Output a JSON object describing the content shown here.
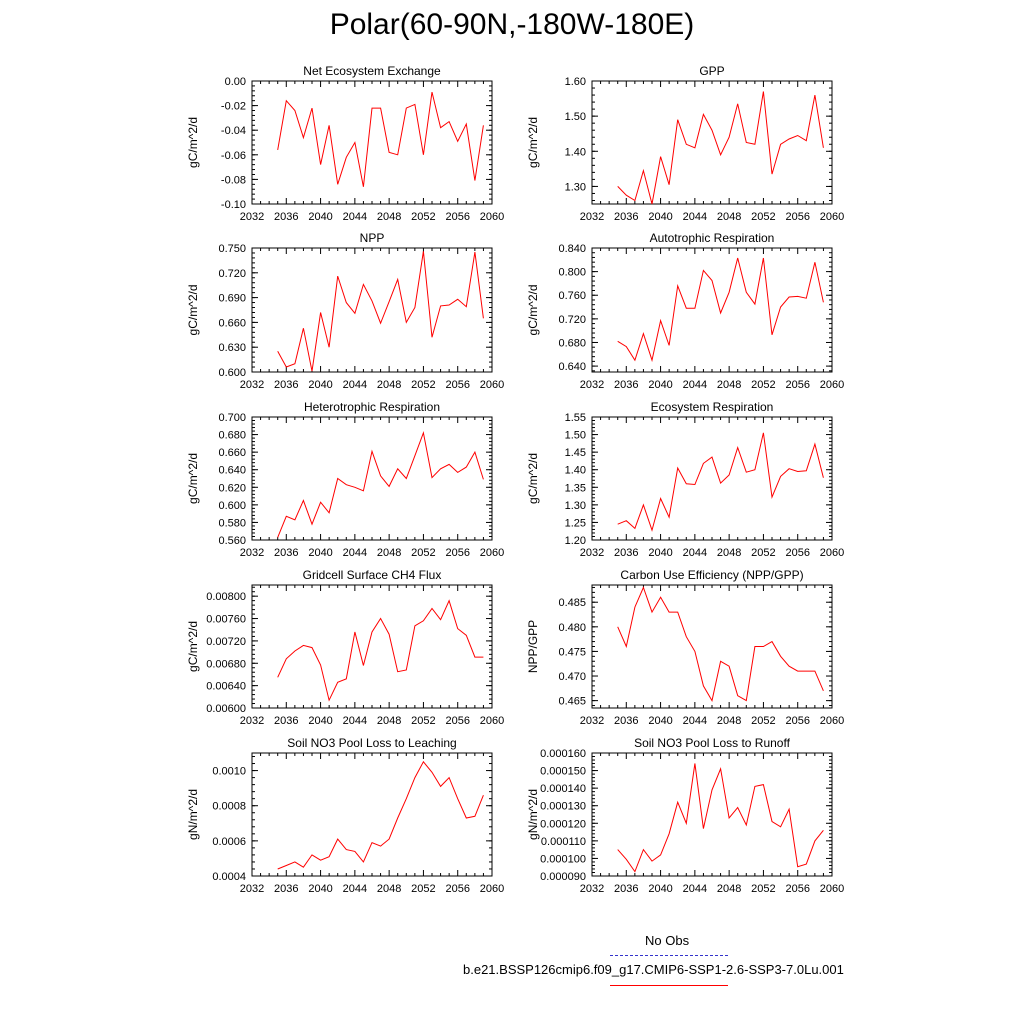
{
  "title": "Polar(60-90N,-180W-180E)",
  "legend": [
    {
      "label": "No Obs",
      "color": "#3333cc",
      "style": "dashed"
    },
    {
      "label": "b.e21.BSSP126cmip6.f09_g17.CMIP6-SSP1-2.6-SSP3-7.0Lu.001",
      "color": "#ff0000",
      "style": "solid"
    }
  ],
  "chart_data": [
    {
      "type": "line",
      "title": "Net Ecosystem Exchange",
      "ylabel": "gC/m^2/d",
      "xlim": [
        2032,
        2060
      ],
      "ylim": [
        -0.1,
        0.0
      ],
      "xticks": [
        "2032",
        "2036",
        "2040",
        "2044",
        "2048",
        "2052",
        "2056",
        "2060"
      ],
      "yticks": [
        "-0.10",
        "-0.08",
        "-0.06",
        "-0.04",
        "-0.02",
        "0.00"
      ],
      "x": [
        2035,
        2036,
        2037,
        2038,
        2039,
        2040,
        2041,
        2042,
        2043,
        2044,
        2045,
        2046,
        2047,
        2048,
        2049,
        2050,
        2051,
        2052,
        2053,
        2054,
        2055,
        2056,
        2057,
        2058,
        2059
      ],
      "series": [
        {
          "color": "#ff0000",
          "values": [
            -0.056,
            -0.016,
            -0.024,
            -0.046,
            -0.022,
            -0.068,
            -0.036,
            -0.084,
            -0.062,
            -0.05,
            -0.086,
            -0.022,
            -0.022,
            -0.058,
            -0.06,
            -0.022,
            -0.019,
            -0.06,
            -0.009,
            -0.038,
            -0.033,
            -0.049,
            -0.035,
            -0.081,
            -0.036
          ]
        }
      ]
    },
    {
      "type": "line",
      "title": "GPP",
      "ylabel": "gC/m^2/d",
      "xlim": [
        2032,
        2060
      ],
      "ylim": [
        1.25,
        1.6
      ],
      "xticks": [
        "2032",
        "2036",
        "2040",
        "2044",
        "2048",
        "2052",
        "2056",
        "2060"
      ],
      "yticks": [
        "1.30",
        "1.40",
        "1.50",
        "1.60"
      ],
      "x": [
        2035,
        2036,
        2037,
        2038,
        2039,
        2040,
        2041,
        2042,
        2043,
        2044,
        2045,
        2046,
        2047,
        2048,
        2049,
        2050,
        2051,
        2052,
        2053,
        2054,
        2055,
        2056,
        2057,
        2058,
        2059
      ],
      "series": [
        {
          "color": "#ff0000",
          "values": [
            1.3,
            1.275,
            1.26,
            1.345,
            1.25,
            1.385,
            1.305,
            1.49,
            1.42,
            1.41,
            1.505,
            1.46,
            1.39,
            1.44,
            1.535,
            1.425,
            1.42,
            1.57,
            1.335,
            1.42,
            1.435,
            1.445,
            1.43,
            1.56,
            1.41
          ]
        }
      ]
    },
    {
      "type": "line",
      "title": "NPP",
      "ylabel": "gC/m^2/d",
      "xlim": [
        2032,
        2060
      ],
      "ylim": [
        0.6,
        0.75
      ],
      "xticks": [
        "2032",
        "2036",
        "2040",
        "2044",
        "2048",
        "2052",
        "2056",
        "2060"
      ],
      "yticks": [
        "0.600",
        "0.630",
        "0.660",
        "0.690",
        "0.720",
        "0.750"
      ],
      "x": [
        2035,
        2036,
        2037,
        2038,
        2039,
        2040,
        2041,
        2042,
        2043,
        2044,
        2045,
        2046,
        2047,
        2048,
        2049,
        2050,
        2051,
        2052,
        2053,
        2054,
        2055,
        2056,
        2057,
        2058,
        2059
      ],
      "series": [
        {
          "color": "#ff0000",
          "values": [
            0.625,
            0.606,
            0.61,
            0.653,
            0.601,
            0.672,
            0.63,
            0.716,
            0.684,
            0.671,
            0.706,
            0.686,
            0.659,
            0.685,
            0.712,
            0.66,
            0.678,
            0.746,
            0.642,
            0.68,
            0.681,
            0.688,
            0.679,
            0.745,
            0.665
          ]
        }
      ]
    },
    {
      "type": "line",
      "title": "Autotrophic Respiration",
      "ylabel": "gC/m^2/d",
      "xlim": [
        2032,
        2060
      ],
      "ylim": [
        0.63,
        0.84
      ],
      "xticks": [
        "2032",
        "2036",
        "2040",
        "2044",
        "2048",
        "2052",
        "2056",
        "2060"
      ],
      "yticks": [
        "0.640",
        "0.680",
        "0.720",
        "0.760",
        "0.800",
        "0.840"
      ],
      "x": [
        2035,
        2036,
        2037,
        2038,
        2039,
        2040,
        2041,
        2042,
        2043,
        2044,
        2045,
        2046,
        2047,
        2048,
        2049,
        2050,
        2051,
        2052,
        2053,
        2054,
        2055,
        2056,
        2057,
        2058,
        2059
      ],
      "series": [
        {
          "color": "#ff0000",
          "values": [
            0.682,
            0.673,
            0.65,
            0.695,
            0.65,
            0.717,
            0.675,
            0.776,
            0.738,
            0.738,
            0.802,
            0.785,
            0.73,
            0.765,
            0.823,
            0.765,
            0.745,
            0.823,
            0.693,
            0.74,
            0.757,
            0.758,
            0.755,
            0.816,
            0.748
          ]
        }
      ]
    },
    {
      "type": "line",
      "title": "Heterotrophic Respiration",
      "ylabel": "gC/m^2/d",
      "xlim": [
        2032,
        2060
      ],
      "ylim": [
        0.56,
        0.7
      ],
      "xticks": [
        "2032",
        "2036",
        "2040",
        "2044",
        "2048",
        "2052",
        "2056",
        "2060"
      ],
      "yticks": [
        "0.560",
        "0.580",
        "0.600",
        "0.620",
        "0.640",
        "0.660",
        "0.680",
        "0.700"
      ],
      "x": [
        2035,
        2036,
        2037,
        2038,
        2039,
        2040,
        2041,
        2042,
        2043,
        2044,
        2045,
        2046,
        2047,
        2048,
        2049,
        2050,
        2051,
        2052,
        2053,
        2054,
        2055,
        2056,
        2057,
        2058,
        2059
      ],
      "series": [
        {
          "color": "#ff0000",
          "values": [
            0.563,
            0.587,
            0.583,
            0.605,
            0.578,
            0.603,
            0.591,
            0.63,
            0.623,
            0.62,
            0.616,
            0.661,
            0.633,
            0.621,
            0.641,
            0.63,
            0.656,
            0.682,
            0.631,
            0.641,
            0.646,
            0.637,
            0.643,
            0.66,
            0.629
          ]
        }
      ]
    },
    {
      "type": "line",
      "title": "Ecosystem Respiration",
      "ylabel": "gC/m^2/d",
      "xlim": [
        2032,
        2060
      ],
      "ylim": [
        1.2,
        1.55
      ],
      "xticks": [
        "2032",
        "2036",
        "2040",
        "2044",
        "2048",
        "2052",
        "2056",
        "2060"
      ],
      "yticks": [
        "1.20",
        "1.25",
        "1.30",
        "1.35",
        "1.40",
        "1.45",
        "1.50",
        "1.55"
      ],
      "x": [
        2035,
        2036,
        2037,
        2038,
        2039,
        2040,
        2041,
        2042,
        2043,
        2044,
        2045,
        2046,
        2047,
        2048,
        2049,
        2050,
        2051,
        2052,
        2053,
        2054,
        2055,
        2056,
        2057,
        2058,
        2059
      ],
      "series": [
        {
          "color": "#ff0000",
          "values": [
            1.245,
            1.255,
            1.233,
            1.3,
            1.228,
            1.318,
            1.265,
            1.405,
            1.36,
            1.358,
            1.418,
            1.436,
            1.362,
            1.385,
            1.463,
            1.393,
            1.4,
            1.505,
            1.322,
            1.381,
            1.403,
            1.395,
            1.397,
            1.473,
            1.377
          ]
        }
      ]
    },
    {
      "type": "line",
      "title": "Gridcell Surface CH4 Flux",
      "ylabel": "gC/m^2/d",
      "xlim": [
        2032,
        2060
      ],
      "ylim": [
        0.006,
        0.0082
      ],
      "xticks": [
        "2032",
        "2036",
        "2040",
        "2044",
        "2048",
        "2052",
        "2056",
        "2060"
      ],
      "yticks": [
        "0.00600",
        "0.00640",
        "0.00680",
        "0.00720",
        "0.00760",
        "0.00800"
      ],
      "x": [
        2035,
        2036,
        2037,
        2038,
        2039,
        2040,
        2041,
        2042,
        2043,
        2044,
        2045,
        2046,
        2047,
        2048,
        2049,
        2050,
        2051,
        2052,
        2053,
        2054,
        2055,
        2056,
        2057,
        2058,
        2059
      ],
      "series": [
        {
          "color": "#ff0000",
          "values": [
            0.00655,
            0.00688,
            0.00702,
            0.00712,
            0.00708,
            0.00677,
            0.00614,
            0.00646,
            0.00652,
            0.00736,
            0.00676,
            0.00736,
            0.0076,
            0.00732,
            0.00665,
            0.00668,
            0.00747,
            0.00756,
            0.00778,
            0.00758,
            0.00792,
            0.00742,
            0.0073,
            0.00691,
            0.00691
          ]
        }
      ]
    },
    {
      "type": "line",
      "title": "Carbon Use Efficiency (NPP/GPP)",
      "ylabel": "NPP/GPP",
      "xlim": [
        2032,
        2060
      ],
      "ylim": [
        0.4635,
        0.4885
      ],
      "xticks": [
        "2032",
        "2036",
        "2040",
        "2044",
        "2048",
        "2052",
        "2056",
        "2060"
      ],
      "yticks": [
        "0.465",
        "0.470",
        "0.475",
        "0.480",
        "0.485"
      ],
      "x": [
        2035,
        2036,
        2037,
        2038,
        2039,
        2040,
        2041,
        2042,
        2043,
        2044,
        2045,
        2046,
        2047,
        2048,
        2049,
        2050,
        2051,
        2052,
        2053,
        2054,
        2055,
        2056,
        2057,
        2058,
        2059
      ],
      "series": [
        {
          "color": "#ff0000",
          "values": [
            0.48,
            0.476,
            0.484,
            0.488,
            0.483,
            0.486,
            0.483,
            0.483,
            0.478,
            0.475,
            0.468,
            0.465,
            0.473,
            0.472,
            0.466,
            0.465,
            0.476,
            0.476,
            0.477,
            0.474,
            0.472,
            0.471,
            0.471,
            0.471,
            0.467
          ]
        }
      ]
    },
    {
      "type": "line",
      "title": "Soil NO3 Pool Loss to Leaching",
      "ylabel": "gN/m^2/d",
      "xlim": [
        2032,
        2060
      ],
      "ylim": [
        0.0004,
        0.0011
      ],
      "xticks": [
        "2032",
        "2036",
        "2040",
        "2044",
        "2048",
        "2052",
        "2056",
        "2060"
      ],
      "yticks": [
        "0.0004",
        "0.0006",
        "0.0008",
        "0.0010"
      ],
      "x": [
        2035,
        2036,
        2037,
        2038,
        2039,
        2040,
        2041,
        2042,
        2043,
        2044,
        2045,
        2046,
        2047,
        2048,
        2049,
        2050,
        2051,
        2052,
        2053,
        2054,
        2055,
        2056,
        2057,
        2058,
        2059
      ],
      "series": [
        {
          "color": "#ff0000",
          "values": [
            0.00044,
            0.00046,
            0.00048,
            0.00045,
            0.00052,
            0.00049,
            0.00051,
            0.00061,
            0.00055,
            0.00054,
            0.00048,
            0.00059,
            0.00057,
            0.00061,
            0.00073,
            0.00084,
            0.00096,
            0.00105,
            0.00099,
            0.00091,
            0.00096,
            0.00084,
            0.00073,
            0.00074,
            0.00086
          ]
        }
      ]
    },
    {
      "type": "line",
      "title": "Soil NO3 Pool Loss to Runoff",
      "ylabel": "gN/m^2/d",
      "xlim": [
        2032,
        2060
      ],
      "ylim": [
        9e-05,
        0.00016
      ],
      "xticks": [
        "2032",
        "2036",
        "2040",
        "2044",
        "2048",
        "2052",
        "2056",
        "2060"
      ],
      "yticks": [
        "0.000090",
        "0.000100",
        "0.000110",
        "0.000120",
        "0.000130",
        "0.000140",
        "0.000150",
        "0.000160"
      ],
      "x": [
        2035,
        2036,
        2037,
        2038,
        2039,
        2040,
        2041,
        2042,
        2043,
        2044,
        2045,
        2046,
        2047,
        2048,
        2049,
        2050,
        2051,
        2052,
        2053,
        2054,
        2055,
        2056,
        2057,
        2058,
        2059
      ],
      "series": [
        {
          "color": "#ff0000",
          "values": [
            0.000105,
            9.95e-05,
            9.25e-05,
            0.000105,
            9.85e-05,
            0.000102,
            0.000114,
            0.000132,
            0.00012,
            0.000154,
            0.000117,
            0.000139,
            0.000151,
            0.000123,
            0.000129,
            0.000119,
            0.000141,
            0.000142,
            0.000121,
            0.000118,
            0.000128,
            9.53e-05,
            9.68e-05,
            0.00011,
            0.000116
          ]
        }
      ]
    }
  ]
}
